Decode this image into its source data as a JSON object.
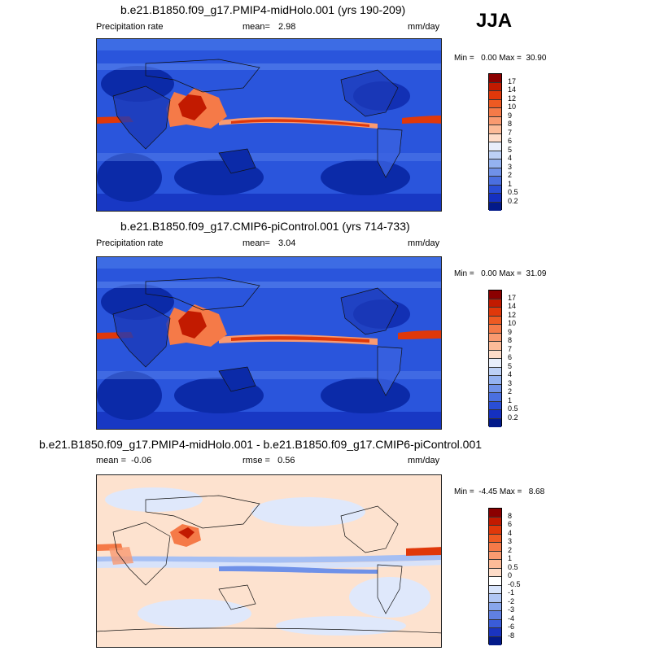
{
  "season": "JJA",
  "panels": [
    {
      "title": "b.e21.B1850.f09_g17.PMIP4-midHolo.001 (yrs 190-209)",
      "left_label": "Precipitation rate",
      "mean_label": "mean=",
      "mean_value": "2.98",
      "units": "mm/day",
      "range_text": "Min =   0.00 Max =  30.90",
      "colorbar_labels": [
        "17",
        "14",
        "12",
        "10",
        "9",
        "8",
        "7",
        "6",
        "5",
        "4",
        "3",
        "2",
        "1",
        "0.5",
        "0.2"
      ],
      "colorbar_colors": [
        "#8b0000",
        "#c21a00",
        "#e0380a",
        "#ee5a22",
        "#f57a48",
        "#f99a70",
        "#fcbb98",
        "#fedcc8",
        "#e8eefa",
        "#bcd0f5",
        "#94b2f0",
        "#6f91e8",
        "#4a6fe0",
        "#2a4ed6",
        "#1530c0",
        "#031a8a"
      ]
    },
    {
      "title": "b.e21.B1850.f09_g17.CMIP6-piControl.001 (yrs 714-733)",
      "left_label": "Precipitation rate",
      "mean_label": "mean=",
      "mean_value": "3.04",
      "units": "mm/day",
      "range_text": "Min =   0.00 Max =  31.09",
      "colorbar_labels": [
        "17",
        "14",
        "12",
        "10",
        "9",
        "8",
        "7",
        "6",
        "5",
        "4",
        "3",
        "2",
        "1",
        "0.5",
        "0.2"
      ],
      "colorbar_colors": [
        "#8b0000",
        "#c21a00",
        "#e0380a",
        "#ee5a22",
        "#f57a48",
        "#f99a70",
        "#fcbb98",
        "#fedcc8",
        "#e8eefa",
        "#bcd0f5",
        "#94b2f0",
        "#6f91e8",
        "#4a6fe0",
        "#2a4ed6",
        "#1530c0",
        "#031a8a"
      ]
    },
    {
      "title": "b.e21.B1850.f09_g17.PMIP4-midHolo.001 - b.e21.B1850.f09_g17.CMIP6-piControl.001",
      "left_label": "mean =  -0.06",
      "mid_label": "rmse =   0.56",
      "units": "mm/day",
      "range_text": "Min =  -4.45 Max =   8.68",
      "colorbar_labels": [
        "8",
        "6",
        "4",
        "3",
        "2",
        "1",
        "0.5",
        "0",
        "-0.5",
        "-1",
        "-2",
        "-3",
        "-4",
        "-6",
        "-8"
      ],
      "colorbar_colors": [
        "#8b0000",
        "#c21a00",
        "#e0380a",
        "#ee5a22",
        "#f57a48",
        "#f99a70",
        "#fcbb98",
        "#fedcc8",
        "#ffffff",
        "#d8e4fb",
        "#b0c6f4",
        "#88a6ec",
        "#6080e2",
        "#3a5cd8",
        "#1a34c0",
        "#031a8a"
      ]
    }
  ]
}
